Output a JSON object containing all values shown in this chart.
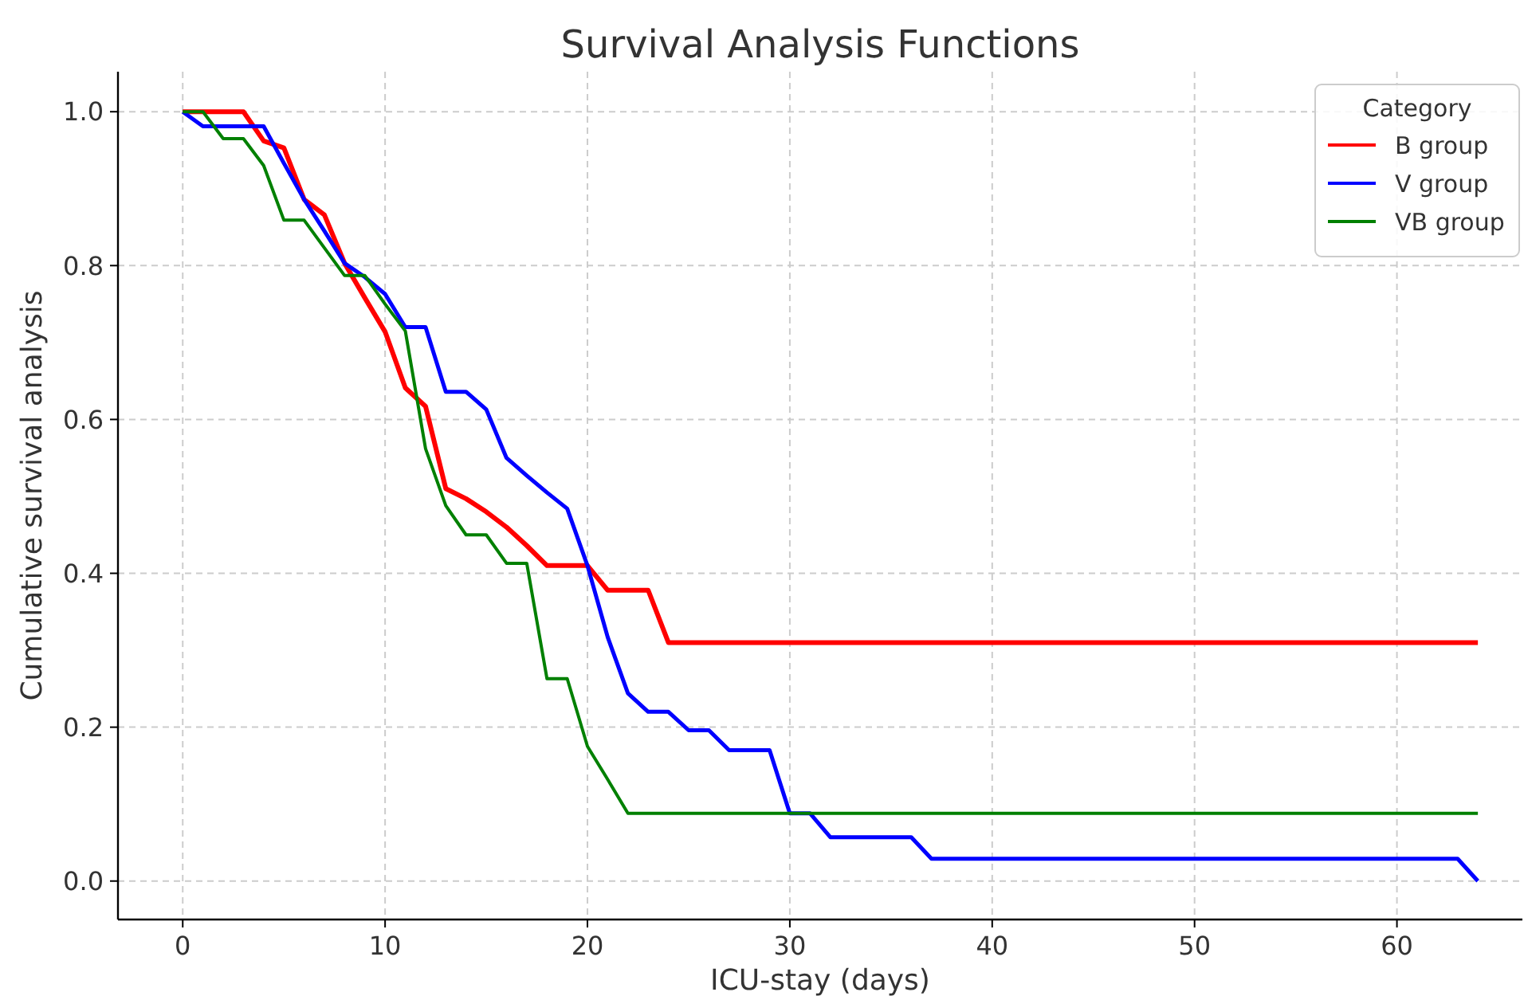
{
  "chart_data": {
    "type": "line",
    "title": "Survival Analysis Functions",
    "xlabel": "ICU-stay (days)",
    "ylabel": "Cumulative survival analysis",
    "legend_title": "Category",
    "x": [
      0,
      1,
      2,
      3,
      4,
      5,
      6,
      7,
      8,
      9,
      10,
      11,
      12,
      13,
      14,
      15,
      16,
      17,
      18,
      19,
      20,
      21,
      22,
      23,
      24,
      25,
      26,
      27,
      28,
      29,
      30,
      31,
      32,
      33,
      34,
      35,
      36,
      37,
      38,
      39,
      40,
      41,
      42,
      43,
      44,
      45,
      46,
      47,
      48,
      49,
      50,
      51,
      52,
      53,
      54,
      55,
      56,
      57,
      58,
      59,
      60,
      61,
      62,
      63,
      64
    ],
    "series": [
      {
        "name": "B group",
        "color": "#ff0000",
        "values": [
          1,
          1,
          1,
          1,
          0.962,
          0.953,
          0.886,
          0.866,
          0.803,
          0.758,
          0.714,
          0.641,
          0.617,
          0.51,
          0.497,
          0.48,
          0.46,
          0.436,
          0.41,
          0.41,
          0.41,
          0.378,
          0.378,
          0.378,
          0.31,
          0.31,
          0.31,
          0.31,
          0.31,
          0.31,
          0.31,
          0.31,
          0.31,
          0.31,
          0.31,
          0.31,
          0.31,
          0.31,
          0.31,
          0.31,
          0.31,
          0.31,
          0.31,
          0.31,
          0.31,
          0.31,
          0.31,
          0.31,
          0.31,
          0.31,
          0.31,
          0.31,
          0.31,
          0.31,
          0.31,
          0.31,
          0.31,
          0.31,
          0.31,
          0.31,
          0.31,
          0.31,
          0.31,
          0.31,
          0.31
        ]
      },
      {
        "name": "V group",
        "color": "#0000ff",
        "values": [
          1,
          0.981,
          0.981,
          0.981,
          0.981,
          0.933,
          0.886,
          0.845,
          0.803,
          0.785,
          0.763,
          0.72,
          0.72,
          0.636,
          0.636,
          0.613,
          0.55,
          0.527,
          0.505,
          0.484,
          0.41,
          0.317,
          0.244,
          0.22,
          0.22,
          0.196,
          0.196,
          0.17,
          0.17,
          0.17,
          0.088,
          0.088,
          0.057,
          0.057,
          0.057,
          0.057,
          0.057,
          0.029,
          0.029,
          0.029,
          0.029,
          0.029,
          0.029,
          0.029,
          0.029,
          0.029,
          0.029,
          0.029,
          0.029,
          0.029,
          0.029,
          0.029,
          0.029,
          0.029,
          0.029,
          0.029,
          0.029,
          0.029,
          0.029,
          0.029,
          0.029,
          0.029,
          0.029,
          0.029,
          0
        ]
      },
      {
        "name": "VB group",
        "color": "#008000",
        "values": [
          1,
          1,
          0.965,
          0.965,
          0.93,
          0.859,
          0.859,
          0.823,
          0.787,
          0.787,
          0.75,
          0.715,
          0.562,
          0.488,
          0.45,
          0.45,
          0.413,
          0.413,
          0.263,
          0.263,
          0.175,
          0.132,
          0.088,
          0.088,
          0.088,
          0.088,
          0.088,
          0.088,
          0.088,
          0.088,
          0.088,
          0.088,
          0.088,
          0.088,
          0.088,
          0.088,
          0.088,
          0.088,
          0.088,
          0.088,
          0.088,
          0.088,
          0.088,
          0.088,
          0.088,
          0.088,
          0.088,
          0.088,
          0.088,
          0.088,
          0.088,
          0.088,
          0.088,
          0.088,
          0.088,
          0.088,
          0.088,
          0.088,
          0.088,
          0.088,
          0.088,
          0.088,
          0.088,
          0.088,
          0.088
        ]
      }
    ],
    "xlim": [
      -3.2,
      66.2
    ],
    "ylim": [
      -0.05,
      1.052
    ],
    "xticks": [
      0,
      10,
      20,
      30,
      40,
      50,
      60
    ],
    "yticks": [
      {
        "value": 0,
        "label": "0.0"
      },
      {
        "value": 0.2,
        "label": "0.2"
      },
      {
        "value": 0.4,
        "label": "0.4"
      },
      {
        "value": 0.6,
        "label": "0.6"
      },
      {
        "value": 0.8,
        "label": "0.8"
      },
      {
        "value": 1,
        "label": "1.0"
      }
    ],
    "grid": true,
    "legend": "top right",
    "line_style": "solid",
    "marker": "none"
  }
}
